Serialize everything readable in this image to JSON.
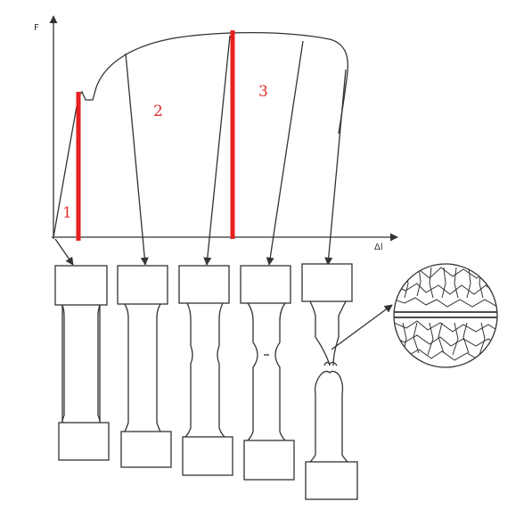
{
  "diagram": {
    "axes": {
      "y_label": "F",
      "x_label": "Δl"
    },
    "regions": [
      {
        "id": "region-1",
        "label": "1"
      },
      {
        "id": "region-2",
        "label": "2"
      },
      {
        "id": "region-3",
        "label": "3"
      }
    ],
    "colors": {
      "marker": "#e62020",
      "ink": "#333333",
      "labels": "#e03030"
    },
    "specimen_stages": 5,
    "inset": "grain-structure-magnified"
  }
}
